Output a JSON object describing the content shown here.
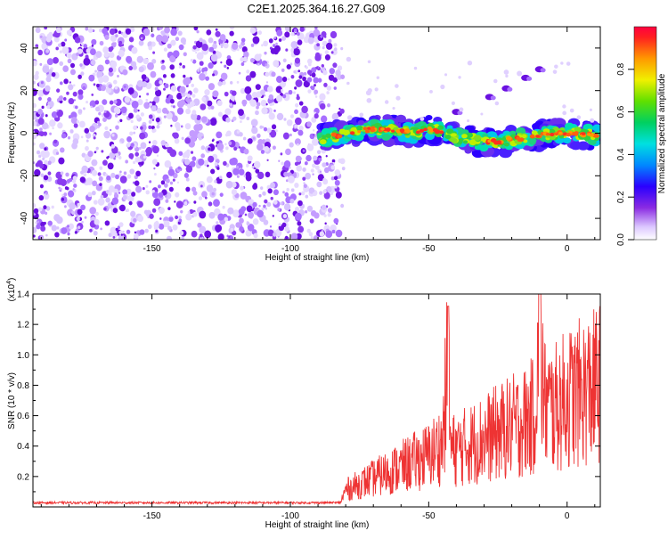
{
  "title": "C2E1.2025.364.16.27.G09",
  "chart_data": [
    {
      "type": "heatmap",
      "xlabel": "Height of straight line (km)",
      "ylabel": "Frequency (Hz)",
      "xlim": [
        -193,
        12
      ],
      "ylim": [
        -50,
        50
      ],
      "xticks": [
        -150,
        -100,
        -50,
        0
      ],
      "yticks": [
        -40,
        -20,
        0,
        20,
        40
      ],
      "noise_region_x": [
        -193,
        -82
      ],
      "signal_track": {
        "x": [
          -89,
          -80,
          -70,
          -60,
          -55,
          -50,
          -45,
          -40,
          -35,
          -30,
          -25,
          -20,
          -15,
          -10,
          -5,
          0,
          5,
          10
        ],
        "y": [
          -3,
          0,
          2,
          1,
          0,
          2,
          1,
          -2,
          -3,
          -4,
          -4,
          -3,
          -2,
          -1,
          0,
          0,
          0,
          -1
        ]
      },
      "secondary_features": [
        {
          "x": -28,
          "y": 17
        },
        {
          "x": -22,
          "y": 21
        },
        {
          "x": -15,
          "y": 26
        },
        {
          "x": -10,
          "y": 30
        },
        {
          "x": -40,
          "y": 10
        }
      ],
      "colorbar": {
        "label": "Normalized spectral amplitude",
        "range": [
          0.0,
          1.0
        ],
        "ticks": [
          "0.0",
          "0.2",
          "0.4",
          "0.6",
          "0.8"
        ],
        "tick_values": [
          0.0,
          0.2,
          0.4,
          0.6,
          0.8
        ]
      }
    },
    {
      "type": "line",
      "xlabel": "Height of straight line (km)",
      "ylabel": "SNR (10 * v/v)",
      "scale_label": "(x10",
      "scale_exponent": "4",
      "scale_suffix": ")",
      "xlim": [
        -193,
        12
      ],
      "ylim": [
        0,
        1.4
      ],
      "xticks": [
        -150,
        -100,
        -50,
        0
      ],
      "yticks": [
        0.2,
        0.4,
        0.6,
        0.8,
        1.0,
        1.2,
        1.4
      ],
      "series": [
        {
          "name": "SNR",
          "color": "#ee3333",
          "x": [
            -193,
            -150,
            -100,
            -82,
            -80,
            -75,
            -70,
            -65,
            -60,
            -55,
            -50,
            -45,
            -43,
            -42,
            -40,
            -35,
            -30,
            -25,
            -20,
            -15,
            -12,
            -10,
            -8,
            -5,
            0,
            5,
            10,
            12
          ],
          "y": [
            0.02,
            0.02,
            0.02,
            0.03,
            0.15,
            0.2,
            0.25,
            0.3,
            0.35,
            0.4,
            0.45,
            0.55,
            1.3,
            0.5,
            0.5,
            0.55,
            0.6,
            0.65,
            0.7,
            0.75,
            0.8,
            1.4,
            0.9,
            0.85,
            0.95,
            1.0,
            1.05,
            1.1
          ]
        }
      ]
    }
  ]
}
